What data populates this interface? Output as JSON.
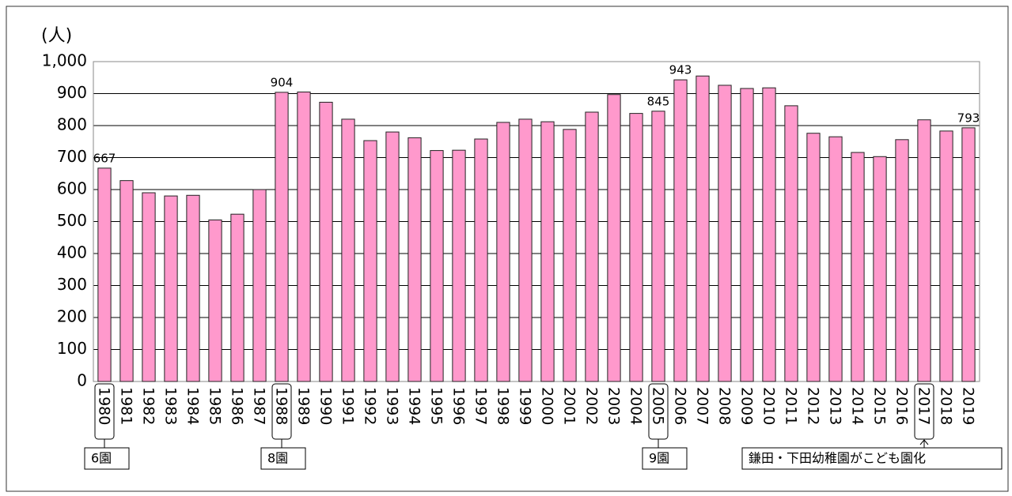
{
  "chart_data": {
    "type": "bar",
    "y_label": "(人)",
    "categories": [
      "1980",
      "1981",
      "1982",
      "1983",
      "1984",
      "1985",
      "1986",
      "1987",
      "1988",
      "1989",
      "1990",
      "1991",
      "1992",
      "1993",
      "1994",
      "1995",
      "1996",
      "1997",
      "1998",
      "1999",
      "2000",
      "2001",
      "2002",
      "2003",
      "2004",
      "2005",
      "2006",
      "2007",
      "2008",
      "2009",
      "2010",
      "2011",
      "2012",
      "2013",
      "2014",
      "2015",
      "2016",
      "2017",
      "2018",
      "2019"
    ],
    "values": [
      667,
      628,
      590,
      580,
      582,
      505,
      523,
      600,
      904,
      905,
      873,
      820,
      753,
      780,
      762,
      722,
      723,
      758,
      810,
      820,
      812,
      788,
      842,
      897,
      838,
      845,
      943,
      955,
      926,
      916,
      918,
      862,
      776,
      765,
      716,
      703,
      756,
      818,
      783,
      793
    ],
    "value_labels": [
      "667",
      null,
      null,
      null,
      null,
      null,
      null,
      null,
      "904",
      null,
      null,
      null,
      null,
      null,
      null,
      null,
      null,
      null,
      null,
      null,
      null,
      null,
      null,
      null,
      null,
      "845",
      "943",
      null,
      null,
      null,
      null,
      null,
      null,
      null,
      null,
      null,
      null,
      null,
      null,
      "793"
    ],
    "color": "#ff99cc",
    "ylim": [
      0,
      1000
    ],
    "yticks": [
      0,
      100,
      200,
      300,
      400,
      500,
      600,
      700,
      800,
      900,
      {
        "value": 1000,
        "label": "1,000"
      }
    ],
    "grid": true,
    "annotations": [
      {
        "text": "6園",
        "at": "1980"
      },
      {
        "text": "8園",
        "at": "1988"
      },
      {
        "text": "9園",
        "at": "2005"
      },
      {
        "text": "鎌田・下田幼稚園がこども園化",
        "at": "2017"
      }
    ]
  }
}
